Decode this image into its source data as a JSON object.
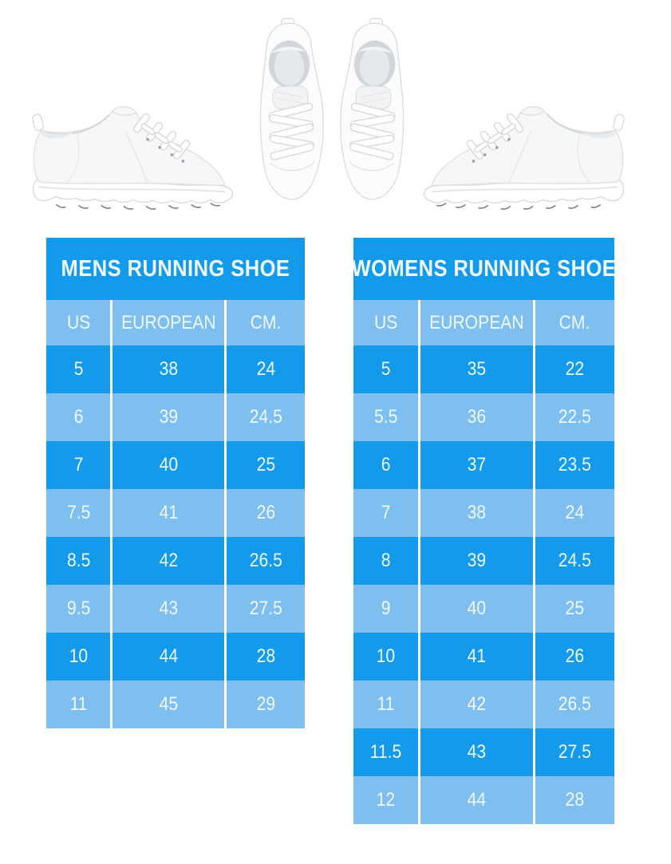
{
  "colors": {
    "row_dark": "#149aeb",
    "row_light": "#7fbfef",
    "text": "#eff8fe",
    "divider": "#ffffff",
    "page_background": "#ffffff"
  },
  "images": {
    "left": "white-running-shoe-side-view",
    "center": "white-running-shoes-pair-top-view",
    "right": "white-running-shoe-side-view-mirrored"
  },
  "tables": [
    {
      "title": "MENS RUNNING SHOE",
      "columns": [
        "US",
        "EUROPEAN",
        "CM."
      ],
      "rows": [
        [
          "5",
          "38",
          "24"
        ],
        [
          "6",
          "39",
          "24.5"
        ],
        [
          "7",
          "40",
          "25"
        ],
        [
          "7.5",
          "41",
          "26"
        ],
        [
          "8.5",
          "42",
          "26.5"
        ],
        [
          "9.5",
          "43",
          "27.5"
        ],
        [
          "10",
          "44",
          "28"
        ],
        [
          "11",
          "45",
          "29"
        ]
      ]
    },
    {
      "title": "WOMENS RUNNING SHOE",
      "columns": [
        "US",
        "EUROPEAN",
        "CM."
      ],
      "rows": [
        [
          "5",
          "35",
          "22"
        ],
        [
          "5.5",
          "36",
          "22.5"
        ],
        [
          "6",
          "37",
          "23.5"
        ],
        [
          "7",
          "38",
          "24"
        ],
        [
          "8",
          "39",
          "24.5"
        ],
        [
          "9",
          "40",
          "25"
        ],
        [
          "10",
          "41",
          "26"
        ],
        [
          "11",
          "42",
          "26.5"
        ],
        [
          "11.5",
          "43",
          "27.5"
        ],
        [
          "12",
          "44",
          "28"
        ]
      ]
    }
  ]
}
